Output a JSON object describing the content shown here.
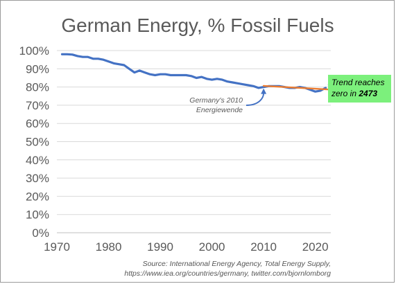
{
  "chart_data": {
    "type": "line",
    "title": "German Energy, % Fossil Fuels",
    "xlabel": "",
    "ylabel": "",
    "xlim": [
      1970,
      2023
    ],
    "ylim": [
      0,
      100
    ],
    "x_ticks": [
      1970,
      1980,
      1990,
      2000,
      2010,
      2020
    ],
    "y_ticks": [
      "0%",
      "10%",
      "20%",
      "30%",
      "40%",
      "50%",
      "60%",
      "70%",
      "80%",
      "90%",
      "100%"
    ],
    "grid": true,
    "series": [
      {
        "color": "#4472c4",
        "x": [
          1971,
          1972,
          1973,
          1974,
          1975,
          1976,
          1977,
          1978,
          1979,
          1980,
          1981,
          1982,
          1983,
          1984,
          1985,
          1986,
          1987,
          1988,
          1989,
          1990,
          1991,
          1992,
          1993,
          1994,
          1995,
          1996,
          1997,
          1998,
          1999,
          2000,
          2001,
          2002,
          2003,
          2004,
          2005,
          2006,
          2007,
          2008,
          2009,
          2010,
          2011,
          2012,
          2013,
          2014,
          2015,
          2016,
          2017,
          2018,
          2019,
          2020,
          2021,
          2022
        ],
        "y": [
          98,
          98,
          97.8,
          97,
          96.5,
          96.5,
          95.5,
          95.5,
          95,
          94,
          93,
          92.5,
          92,
          90,
          88,
          89,
          88,
          87,
          86.5,
          87,
          87,
          86.5,
          86.5,
          86.5,
          86.5,
          86,
          85,
          85.5,
          84.5,
          84,
          84.5,
          84,
          83,
          82.5,
          82,
          81.5,
          81,
          80.5,
          79.5,
          80,
          80.5,
          80.5,
          80.5,
          80,
          79.5,
          79.5,
          80,
          79.5,
          78.5,
          77.5,
          78,
          79.5
        ]
      },
      {
        "color": "#ed7d31",
        "x": [
          2010,
          2023
        ],
        "y": [
          80.6,
          78.6
        ]
      }
    ],
    "annotations": [
      {
        "text_lines": [
          "Germany's 2010",
          "Energiewende"
        ],
        "target_x": 2010,
        "target_y": 80
      },
      {
        "text": "Trend reaches zero in ",
        "highlight": "2473"
      }
    ],
    "source_lines": [
      "Source: International Energy Agency, Total Energy Supply,",
      "https://www.iea.org/countries/germany, twitter.com/bjornlomborg"
    ]
  }
}
